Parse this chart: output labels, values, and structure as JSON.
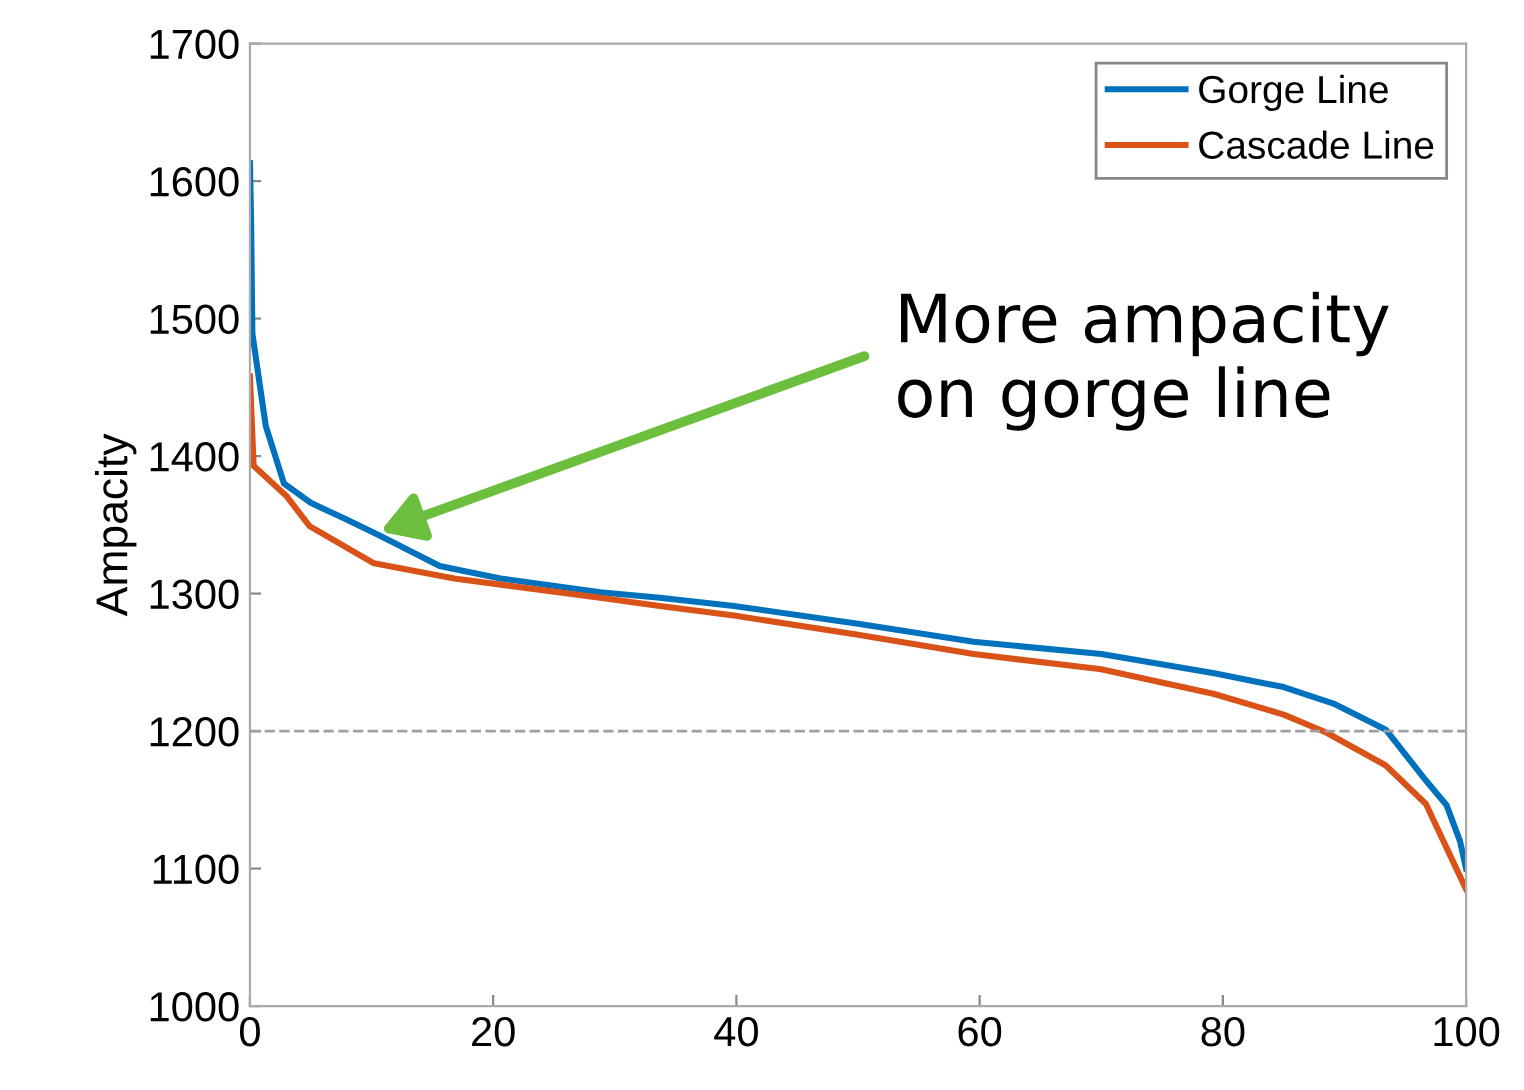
{
  "chart_data": {
    "type": "line",
    "ylabel": "Ampacity",
    "xlim": [
      0,
      100
    ],
    "xticks": [
      0,
      20,
      40,
      60,
      80,
      100
    ],
    "ylim": [
      1000,
      1700
    ],
    "yticks": [
      1000,
      1100,
      1200,
      1300,
      1400,
      1500,
      1600,
      1700
    ],
    "grid": false,
    "legend": "top right",
    "line_style": "solid",
    "marker": "none",
    "series": [
      {
        "name": "Gorge Line",
        "color": "#0072bd",
        "x": [
          0,
          0.1,
          0.2,
          1.3,
          2.8,
          5,
          7.9,
          10.7,
          15.6,
          20.6,
          28.8,
          33.7,
          39.8,
          50,
          59.5,
          70,
          79.3,
          85,
          89.1,
          93.4,
          96.7,
          98.4,
          99.5,
          100
        ],
        "values": [
          1613,
          1568,
          1489,
          1422,
          1380,
          1366,
          1354,
          1342,
          1320,
          1311,
          1301,
          1297,
          1291,
          1278,
          1265,
          1256,
          1242,
          1232,
          1220,
          1201,
          1164,
          1146,
          1120,
          1100
        ]
      },
      {
        "name": "Cascade Line",
        "color": "#d95319",
        "x": [
          0,
          0.3,
          3,
          4.9,
          10.2,
          16.8,
          28.8,
          33.7,
          39.8,
          50,
          59.5,
          70,
          79.3,
          85,
          88.5,
          93.4,
          96.7,
          99.2,
          100
        ],
        "values": [
          1458,
          1393,
          1371,
          1349,
          1322,
          1311,
          1297,
          1291,
          1284,
          1270,
          1256,
          1245,
          1227,
          1212,
          1199,
          1175,
          1147,
          1100,
          1085
        ]
      }
    ],
    "ref_lines": [
      {
        "axis": "y",
        "value": 1200,
        "color": "#a0a0a0",
        "line_style": "dashed"
      }
    ],
    "annotations": [
      {
        "text": "More ampacity\non gorge line",
        "x": 10.7,
        "y": 1345
      }
    ]
  }
}
